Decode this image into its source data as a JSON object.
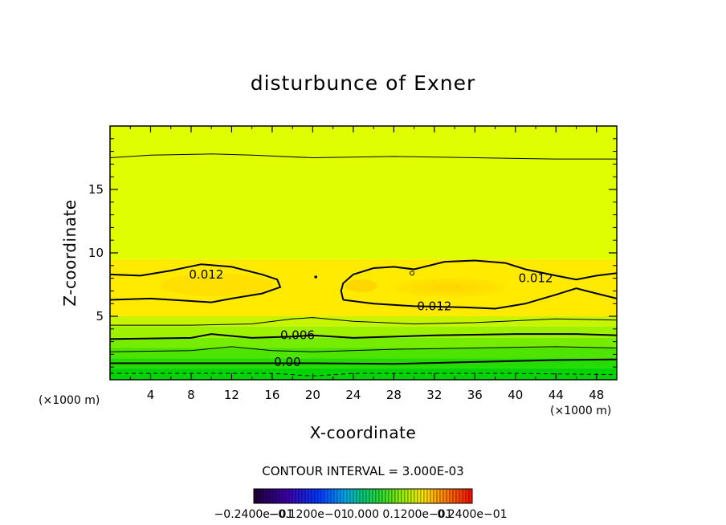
{
  "chart_data": {
    "type": "heatmap",
    "title": "disturbunce of Exner",
    "xlabel": "X-coordinate",
    "ylabel": "Z-coordinate",
    "x_unit": "(×1000 m)",
    "y_unit": "(×1000 m)",
    "xlim": [
      0,
      50
    ],
    "ylim": [
      0,
      20
    ],
    "x_ticks": [
      4,
      8,
      12,
      16,
      20,
      24,
      28,
      32,
      36,
      40,
      44,
      48
    ],
    "y_ticks": [
      5,
      10,
      15
    ],
    "contour_interval_text": "CONTOUR INTERVAL = 3.000E-03",
    "contour_labels": [
      {
        "text": "0.012",
        "x": 9.5,
        "z": 8.3
      },
      {
        "text": "0.012",
        "x": 42.0,
        "z": 8.0
      },
      {
        "text": "0.012",
        "x": 32.0,
        "z": 5.8
      },
      {
        "text": "0.006",
        "x": 18.5,
        "z": 3.5
      },
      {
        "text": "0.00",
        "x": 17.5,
        "z": 1.4
      }
    ],
    "contour_lines": [
      {
        "level": 0.0,
        "style": "dashed",
        "weight": "thin",
        "points": [
          [
            0,
            0.5
          ],
          [
            8,
            0.5
          ],
          [
            16,
            0.5
          ],
          [
            20,
            0.3
          ],
          [
            24,
            0.5
          ],
          [
            32,
            0.5
          ],
          [
            40,
            0.5
          ],
          [
            50,
            0.4
          ]
        ]
      },
      {
        "level": 0.0,
        "style": "solid",
        "weight": "thick",
        "points": [
          [
            0,
            1.3
          ],
          [
            8,
            1.3
          ],
          [
            16,
            1.3
          ],
          [
            20,
            1.3
          ],
          [
            28,
            1.25
          ],
          [
            36,
            1.4
          ],
          [
            44,
            1.55
          ],
          [
            50,
            1.6
          ]
        ]
      },
      {
        "level": 0.003,
        "style": "solid",
        "weight": "thin",
        "points": [
          [
            0,
            2.2
          ],
          [
            8,
            2.3
          ],
          [
            12,
            2.6
          ],
          [
            16,
            2.3
          ],
          [
            20,
            2.2
          ],
          [
            28,
            2.4
          ],
          [
            36,
            2.5
          ],
          [
            44,
            2.6
          ],
          [
            50,
            2.5
          ]
        ]
      },
      {
        "level": 0.006,
        "style": "solid",
        "weight": "thick",
        "points": [
          [
            0,
            3.2
          ],
          [
            8,
            3.3
          ],
          [
            10,
            3.6
          ],
          [
            14,
            3.3
          ],
          [
            18,
            3.4
          ],
          [
            20,
            3.5
          ],
          [
            24,
            3.3
          ],
          [
            32,
            3.5
          ],
          [
            40,
            3.6
          ],
          [
            46,
            3.6
          ],
          [
            50,
            3.5
          ]
        ]
      },
      {
        "level": 0.009,
        "style": "solid",
        "weight": "thin",
        "points": [
          [
            0,
            4.3
          ],
          [
            8,
            4.3
          ],
          [
            14,
            4.4
          ],
          [
            18,
            4.8
          ],
          [
            20,
            4.9
          ],
          [
            24,
            4.6
          ],
          [
            30,
            4.4
          ],
          [
            36,
            4.5
          ],
          [
            44,
            4.8
          ],
          [
            50,
            4.7
          ]
        ]
      },
      {
        "level": 0.012,
        "style": "solid",
        "weight": "thick",
        "points": [
          [
            0,
            8.3
          ],
          [
            3,
            8.2
          ],
          [
            6,
            8.6
          ],
          [
            9,
            9.1
          ],
          [
            12,
            8.9
          ],
          [
            15,
            8.3
          ],
          [
            16.5,
            7.9
          ],
          [
            16.8,
            7.3
          ],
          [
            15,
            6.8
          ],
          [
            12,
            6.4
          ],
          [
            10,
            6.1
          ],
          [
            8,
            6.2
          ],
          [
            4,
            6.4
          ],
          [
            0,
            6.3
          ]
        ]
      },
      {
        "level": 0.012,
        "style": "solid",
        "weight": "thick",
        "points": [
          [
            23,
            6.3
          ],
          [
            22.8,
            7.0
          ],
          [
            23,
            7.6
          ],
          [
            24,
            8.3
          ],
          [
            26,
            8.8
          ],
          [
            28,
            8.9
          ],
          [
            30,
            8.7
          ],
          [
            33,
            9.3
          ],
          [
            36,
            9.4
          ],
          [
            39,
            9.2
          ],
          [
            41,
            8.7
          ],
          [
            44,
            8.2
          ],
          [
            46,
            7.9
          ],
          [
            48,
            8.2
          ],
          [
            50,
            8.4
          ]
        ]
      },
      {
        "level": 0.012,
        "style": "solid",
        "weight": "thick",
        "points": [
          [
            23,
            6.3
          ],
          [
            26,
            6.0
          ],
          [
            30,
            5.8
          ],
          [
            35,
            5.7
          ],
          [
            38,
            5.6
          ],
          [
            41,
            6.0
          ],
          [
            44,
            6.7
          ],
          [
            46,
            7.2
          ],
          [
            48,
            6.8
          ],
          [
            50,
            6.4
          ]
        ]
      },
      {
        "level": 0.015,
        "style": "solid",
        "weight": "thin",
        "points": [
          [
            0,
            17.5
          ],
          [
            4,
            17.7
          ],
          [
            10,
            17.8
          ],
          [
            14,
            17.7
          ],
          [
            20,
            17.5
          ],
          [
            28,
            17.6
          ],
          [
            36,
            17.5
          ],
          [
            44,
            17.4
          ],
          [
            50,
            17.4
          ]
        ]
      }
    ],
    "fill_bands": [
      {
        "z_top": 20,
        "z_bottom": 9.5,
        "color": "#dfff00"
      },
      {
        "z_top": 9.5,
        "z_bottom": 5.0,
        "color": "#ffea00"
      },
      {
        "z_top": 5.0,
        "z_bottom": 4.2,
        "color": "#c7f400"
      },
      {
        "z_top": 4.2,
        "z_bottom": 3.3,
        "color": "#9ef200"
      },
      {
        "z_top": 3.3,
        "z_bottom": 2.5,
        "color": "#76ec00"
      },
      {
        "z_top": 2.5,
        "z_bottom": 1.7,
        "color": "#4fe400"
      },
      {
        "z_top": 1.7,
        "z_bottom": 0.9,
        "color": "#24dc00"
      },
      {
        "z_top": 0.9,
        "z_bottom": 0.0,
        "color": "#00d400"
      }
    ],
    "colorbar_labels": [
      "−0.2400e−01",
      "−0.1200e−01",
      "0.000",
      "0.1200e−01",
      "0.2400e−01"
    ]
  },
  "colors": {
    "plot_green": "#00d400",
    "plot_yellow": "#dfff00",
    "plot_core": "#ffea00",
    "plot_max": "#ffd600"
  }
}
